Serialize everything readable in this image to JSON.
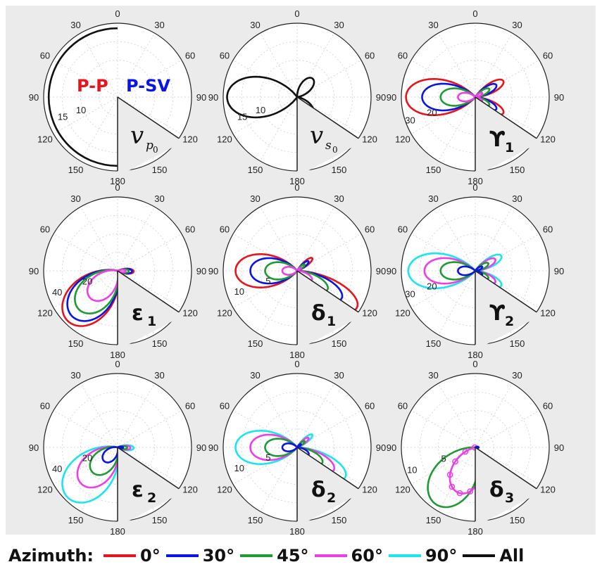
{
  "angle_ticks": [
    "0",
    "30",
    "60",
    "90",
    "120",
    "150",
    "180"
  ],
  "colors": {
    "0°": "#e8141c",
    "30°": "#0a14e6",
    "45°": "#1f9b33",
    "60°": "#ee3ee8",
    "90°": "#19e6f0",
    "All": "#111111"
  },
  "wave_labels": {
    "pp": "P-P",
    "psv": "P-SV",
    "pp_color": "#e8141c",
    "psv_color": "#0a14e6"
  },
  "legend": {
    "title": "Azimuth:",
    "items": [
      {
        "label": "0°",
        "color": "#e8141c"
      },
      {
        "label": "30°",
        "color": "#0a14e6"
      },
      {
        "label": "45°",
        "color": "#1f9b33"
      },
      {
        "label": "60°",
        "color": "#ee3ee8"
      },
      {
        "label": "90°",
        "color": "#19e6f0"
      },
      {
        "label": "All",
        "color": "#111111"
      }
    ]
  },
  "chart_data": [
    {
      "type": "polar",
      "panel": "vp0",
      "label": {
        "main": "v",
        "sub": "p",
        "subsub": "0"
      },
      "radial_ticks": [
        "10",
        "15"
      ],
      "series": [
        {
          "name": "All",
          "shape": "semicircle",
          "r": 17.7
        }
      ]
    },
    {
      "type": "polar",
      "panel": "vs0",
      "label": {
        "main": "v",
        "sub": "s",
        "subsub": "0"
      },
      "radial_ticks": [
        "10",
        "15"
      ],
      "series": [
        {
          "name": "All",
          "shape": "lobe",
          "max_r": 18,
          "peak_deg": 270,
          "width_deg": 28
        },
        {
          "name": "All",
          "shape": "lobe",
          "max_r": 6.2,
          "peak_deg": 40,
          "width_deg": 22
        },
        {
          "name": "All",
          "shape": "lobe",
          "max_r": 6.2,
          "peak_deg": 140,
          "width_deg": 22
        }
      ]
    },
    {
      "type": "polar",
      "panel": "upsilon1",
      "label": {
        "main": "ϒ",
        "sub": "1"
      },
      "radial_ticks": [
        "20",
        "30"
      ],
      "series": [
        {
          "name": "0°",
          "shape": "lobe",
          "max_r": 30,
          "peak_deg": 270,
          "width_deg": 25
        },
        {
          "name": "30°",
          "shape": "lobe",
          "max_r": 23,
          "peak_deg": 270,
          "width_deg": 24
        },
        {
          "name": "45°",
          "shape": "lobe",
          "max_r": 15,
          "peak_deg": 270,
          "width_deg": 24
        },
        {
          "name": "60°",
          "shape": "lobe",
          "max_r": 7.5,
          "peak_deg": 270,
          "width_deg": 24
        },
        {
          "name": "0°",
          "shape": "lobe",
          "max_r": 14,
          "peak_deg": 60,
          "width_deg": 14
        },
        {
          "name": "0°",
          "shape": "lobe",
          "max_r": 14,
          "peak_deg": 120,
          "width_deg": 14
        },
        {
          "name": "30°",
          "shape": "lobe",
          "max_r": 10.5,
          "peak_deg": 60,
          "width_deg": 14
        },
        {
          "name": "30°",
          "shape": "lobe",
          "max_r": 10.5,
          "peak_deg": 120,
          "width_deg": 14
        },
        {
          "name": "45°",
          "shape": "lobe",
          "max_r": 7,
          "peak_deg": 60,
          "width_deg": 14
        },
        {
          "name": "45°",
          "shape": "lobe",
          "max_r": 7,
          "peak_deg": 120,
          "width_deg": 14
        },
        {
          "name": "60°",
          "shape": "lobe",
          "max_r": 3.5,
          "peak_deg": 60,
          "width_deg": 14
        },
        {
          "name": "60°",
          "shape": "lobe",
          "max_r": 3.5,
          "peak_deg": 120,
          "width_deg": 14
        }
      ]
    },
    {
      "type": "polar",
      "panel": "epsilon1",
      "label": {
        "main": "ε",
        "sub": "1"
      },
      "radial_ticks": [
        "20",
        "40"
      ],
      "series": [
        {
          "name": "0°",
          "shape": "lobe",
          "max_r": 44,
          "peak_deg": 225,
          "width_deg": 30
        },
        {
          "name": "30°",
          "shape": "lobe",
          "max_r": 40,
          "peak_deg": 225,
          "width_deg": 30
        },
        {
          "name": "45°",
          "shape": "lobe",
          "max_r": 34,
          "peak_deg": 225,
          "width_deg": 30
        },
        {
          "name": "60°",
          "shape": "lobe",
          "max_r": 24,
          "peak_deg": 225,
          "width_deg": 30
        },
        {
          "name": "0°",
          "shape": "lobe",
          "max_r": 10,
          "peak_deg": 92,
          "width_deg": 15
        },
        {
          "name": "30°",
          "shape": "lobe",
          "max_r": 9,
          "peak_deg": 92,
          "width_deg": 15
        },
        {
          "name": "45°",
          "shape": "lobe",
          "max_r": 7,
          "peak_deg": 92,
          "width_deg": 15
        },
        {
          "name": "60°",
          "shape": "lobe",
          "max_r": 5,
          "peak_deg": 92,
          "width_deg": 15
        }
      ]
    },
    {
      "type": "polar",
      "panel": "delta1",
      "label": {
        "main": "δ",
        "sub": "1"
      },
      "radial_ticks": [
        "5",
        "10"
      ],
      "series": [
        {
          "name": "0°",
          "shape": "lobe",
          "max_r": 10,
          "peak_deg": 270,
          "width_deg": 26
        },
        {
          "name": "30°",
          "shape": "lobe",
          "max_r": 7.6,
          "peak_deg": 270,
          "width_deg": 26
        },
        {
          "name": "45°",
          "shape": "lobe",
          "max_r": 5.2,
          "peak_deg": 270,
          "width_deg": 26
        },
        {
          "name": "60°",
          "shape": "lobe",
          "max_r": 2.4,
          "peak_deg": 270,
          "width_deg": 26
        },
        {
          "name": "0°",
          "shape": "lobe",
          "max_r": 11.4,
          "peak_deg": 122,
          "width_deg": 16
        },
        {
          "name": "30°",
          "shape": "lobe",
          "max_r": 8.5,
          "peak_deg": 122,
          "width_deg": 16
        },
        {
          "name": "45°",
          "shape": "lobe",
          "max_r": 5.8,
          "peak_deg": 122,
          "width_deg": 16
        },
        {
          "name": "60°",
          "shape": "lobe",
          "max_r": 2.8,
          "peak_deg": 122,
          "width_deg": 16
        },
        {
          "name": "0°",
          "shape": "lobe",
          "max_r": 3.2,
          "peak_deg": 50,
          "width_deg": 11
        },
        {
          "name": "30°",
          "shape": "lobe",
          "max_r": 2.4,
          "peak_deg": 50,
          "width_deg": 11
        },
        {
          "name": "45°",
          "shape": "lobe",
          "max_r": 1.6,
          "peak_deg": 50,
          "width_deg": 11
        },
        {
          "name": "60°",
          "shape": "lobe",
          "max_r": 0.8,
          "peak_deg": 50,
          "width_deg": 11
        }
      ]
    },
    {
      "type": "polar",
      "panel": "upsilon2",
      "label": {
        "main": "ϒ",
        "sub": "2"
      },
      "radial_ticks": [
        "20",
        "30"
      ],
      "series": [
        {
          "name": "90°",
          "shape": "lobe",
          "max_r": 29,
          "peak_deg": 270,
          "width_deg": 25
        },
        {
          "name": "60°",
          "shape": "lobe",
          "max_r": 22,
          "peak_deg": 270,
          "width_deg": 24
        },
        {
          "name": "45°",
          "shape": "lobe",
          "max_r": 15,
          "peak_deg": 270,
          "width_deg": 24
        },
        {
          "name": "30°",
          "shape": "lobe",
          "max_r": 7.5,
          "peak_deg": 270,
          "width_deg": 24
        },
        {
          "name": "90°",
          "shape": "lobe",
          "max_r": 13,
          "peak_deg": 60,
          "width_deg": 14
        },
        {
          "name": "90°",
          "shape": "lobe",
          "max_r": 13,
          "peak_deg": 120,
          "width_deg": 14
        },
        {
          "name": "60°",
          "shape": "lobe",
          "max_r": 10,
          "peak_deg": 60,
          "width_deg": 14
        },
        {
          "name": "60°",
          "shape": "lobe",
          "max_r": 10,
          "peak_deg": 120,
          "width_deg": 14
        },
        {
          "name": "45°",
          "shape": "lobe",
          "max_r": 6.5,
          "peak_deg": 60,
          "width_deg": 14
        },
        {
          "name": "45°",
          "shape": "lobe",
          "max_r": 6.5,
          "peak_deg": 120,
          "width_deg": 14
        },
        {
          "name": "30°",
          "shape": "lobe",
          "max_r": 3.5,
          "peak_deg": 60,
          "width_deg": 14
        },
        {
          "name": "30°",
          "shape": "lobe",
          "max_r": 3.5,
          "peak_deg": 120,
          "width_deg": 14
        }
      ]
    },
    {
      "type": "polar",
      "panel": "epsilon2",
      "label": {
        "main": "ε",
        "sub": "2"
      },
      "radial_ticks": [
        "20",
        "40"
      ],
      "series": [
        {
          "name": "90°",
          "shape": "lobe",
          "max_r": 44,
          "peak_deg": 225,
          "width_deg": 30
        },
        {
          "name": "60°",
          "shape": "lobe",
          "max_r": 32,
          "peak_deg": 225,
          "width_deg": 30
        },
        {
          "name": "45°",
          "shape": "lobe",
          "max_r": 22,
          "peak_deg": 225,
          "width_deg": 30
        },
        {
          "name": "30°",
          "shape": "lobe",
          "max_r": 12,
          "peak_deg": 225,
          "width_deg": 30
        },
        {
          "name": "90°",
          "shape": "lobe",
          "max_r": 10,
          "peak_deg": 92,
          "width_deg": 15
        },
        {
          "name": "60°",
          "shape": "lobe",
          "max_r": 8,
          "peak_deg": 92,
          "width_deg": 15
        },
        {
          "name": "45°",
          "shape": "lobe",
          "max_r": 6,
          "peak_deg": 92,
          "width_deg": 15
        },
        {
          "name": "30°",
          "shape": "lobe",
          "max_r": 3.5,
          "peak_deg": 92,
          "width_deg": 15
        }
      ]
    },
    {
      "type": "polar",
      "panel": "delta2",
      "label": {
        "main": "δ",
        "sub": "2"
      },
      "radial_ticks": [
        "5",
        "10"
      ],
      "series": [
        {
          "name": "90°",
          "shape": "lobe",
          "max_r": 10,
          "peak_deg": 270,
          "width_deg": 26
        },
        {
          "name": "60°",
          "shape": "lobe",
          "max_r": 7.6,
          "peak_deg": 270,
          "width_deg": 26
        },
        {
          "name": "45°",
          "shape": "lobe",
          "max_r": 5.2,
          "peak_deg": 270,
          "width_deg": 26
        },
        {
          "name": "30°",
          "shape": "lobe",
          "max_r": 2.4,
          "peak_deg": 270,
          "width_deg": 26
        },
        {
          "name": "90°",
          "shape": "lobe",
          "max_r": 9.2,
          "peak_deg": 122,
          "width_deg": 16
        },
        {
          "name": "60°",
          "shape": "lobe",
          "max_r": 7,
          "peak_deg": 122,
          "width_deg": 16
        },
        {
          "name": "45°",
          "shape": "lobe",
          "max_r": 4.8,
          "peak_deg": 122,
          "width_deg": 16
        },
        {
          "name": "30°",
          "shape": "lobe",
          "max_r": 2.2,
          "peak_deg": 122,
          "width_deg": 16
        },
        {
          "name": "90°",
          "shape": "lobe",
          "max_r": 3.2,
          "peak_deg": 50,
          "width_deg": 11
        },
        {
          "name": "60°",
          "shape": "lobe",
          "max_r": 2.4,
          "peak_deg": 50,
          "width_deg": 11
        },
        {
          "name": "45°",
          "shape": "lobe",
          "max_r": 1.6,
          "peak_deg": 50,
          "width_deg": 11
        },
        {
          "name": "30°",
          "shape": "lobe",
          "max_r": 0.8,
          "peak_deg": 50,
          "width_deg": 11
        }
      ]
    },
    {
      "type": "polar",
      "panel": "delta3",
      "label": {
        "main": "δ",
        "sub": "3"
      },
      "radial_ticks": [
        "5",
        "10"
      ],
      "series": [
        {
          "name": "45°",
          "shape": "lobe",
          "max_r": 10.3,
          "peak_deg": 215,
          "width_deg": 30
        },
        {
          "name": "60°",
          "shape": "lobe",
          "max_r": 7.2,
          "peak_deg": 200,
          "width_deg": 30,
          "markers": true
        },
        {
          "name": "30°",
          "shape": "lobe",
          "max_r": 0.5,
          "peak_deg": 90,
          "width_deg": 20
        }
      ]
    }
  ]
}
